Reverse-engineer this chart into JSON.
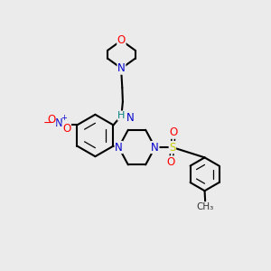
{
  "background_color": "#ebebeb",
  "bond_color": "#000000",
  "atom_colors": {
    "N": "#0000cc",
    "O": "#ff0000",
    "S": "#cccc00",
    "H": "#008080",
    "C": "#000000"
  },
  "font_size": 9,
  "title": ""
}
